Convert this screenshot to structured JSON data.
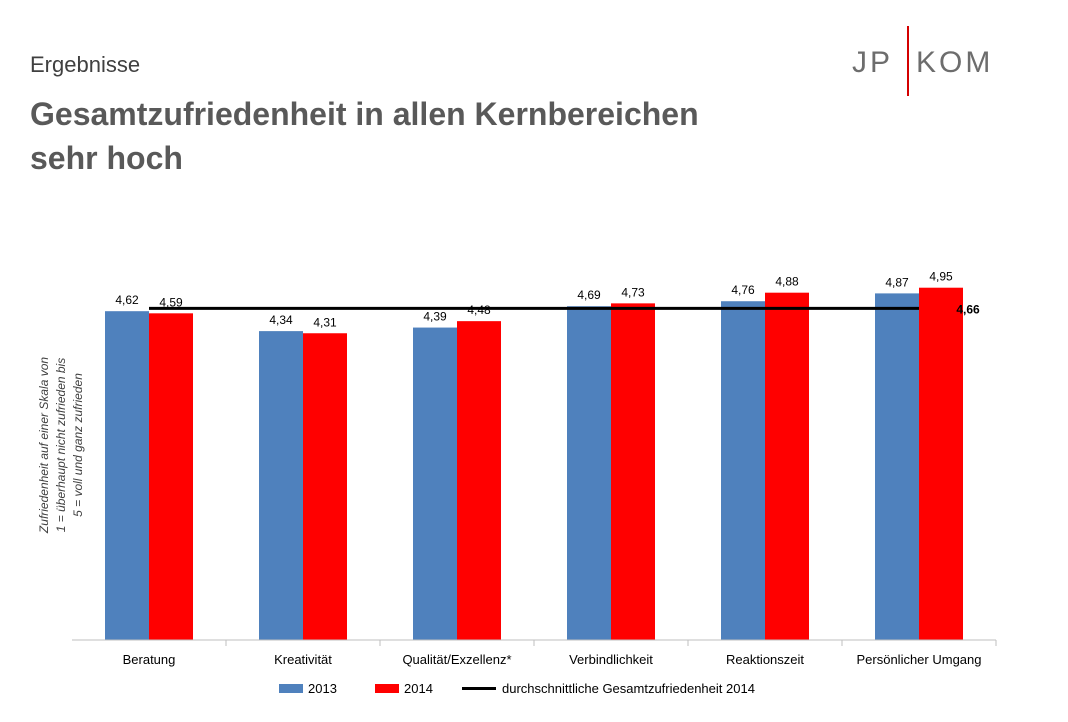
{
  "slide": {
    "kicker": "Ergebnisse",
    "headline_line1": "Gesamtzufriedenheit in allen Kernbereichen",
    "headline_line2": "sehr hoch"
  },
  "logo": {
    "text_left": "JP",
    "text_right": "KOM",
    "text_color": "#6d6d6d",
    "bar_color": "#d40000"
  },
  "chart_data": {
    "type": "bar",
    "title": "",
    "categories": [
      "Beratung",
      "Kreativität",
      "Qualität/Exzellenz*",
      "Verbindlichkeit",
      "Reaktionszeit",
      "Persönlicher Umgang"
    ],
    "series": [
      {
        "name": "2013",
        "color": "#4f81bd",
        "values": [
          4.62,
          4.34,
          4.39,
          4.69,
          4.76,
          4.87
        ],
        "labels": [
          "4,62",
          "4,34",
          "4,39",
          "4,69",
          "4,76",
          "4,87"
        ]
      },
      {
        "name": "2014",
        "color": "#ff0000",
        "values": [
          4.59,
          4.31,
          4.48,
          4.73,
          4.88,
          4.95
        ],
        "labels": [
          "4,59",
          "4,31",
          "4,48",
          "4,73",
          "4,88",
          "4,95"
        ]
      }
    ],
    "reference_line": {
      "name": "durchschnittliche Gesamtzufriedenheit 2014",
      "value": 4.66,
      "label": "4,66",
      "color": "#000000"
    },
    "ylabel_lines": [
      "Zufriedenheit  auf einer Skala von",
      "1 = überhaupt nicht zufrieden bis",
      "5 = voll und ganz zufrieden"
    ],
    "xlabel": "",
    "ylim": [
      0,
      5.55
    ],
    "grid": false,
    "legend_position": "bottom"
  }
}
